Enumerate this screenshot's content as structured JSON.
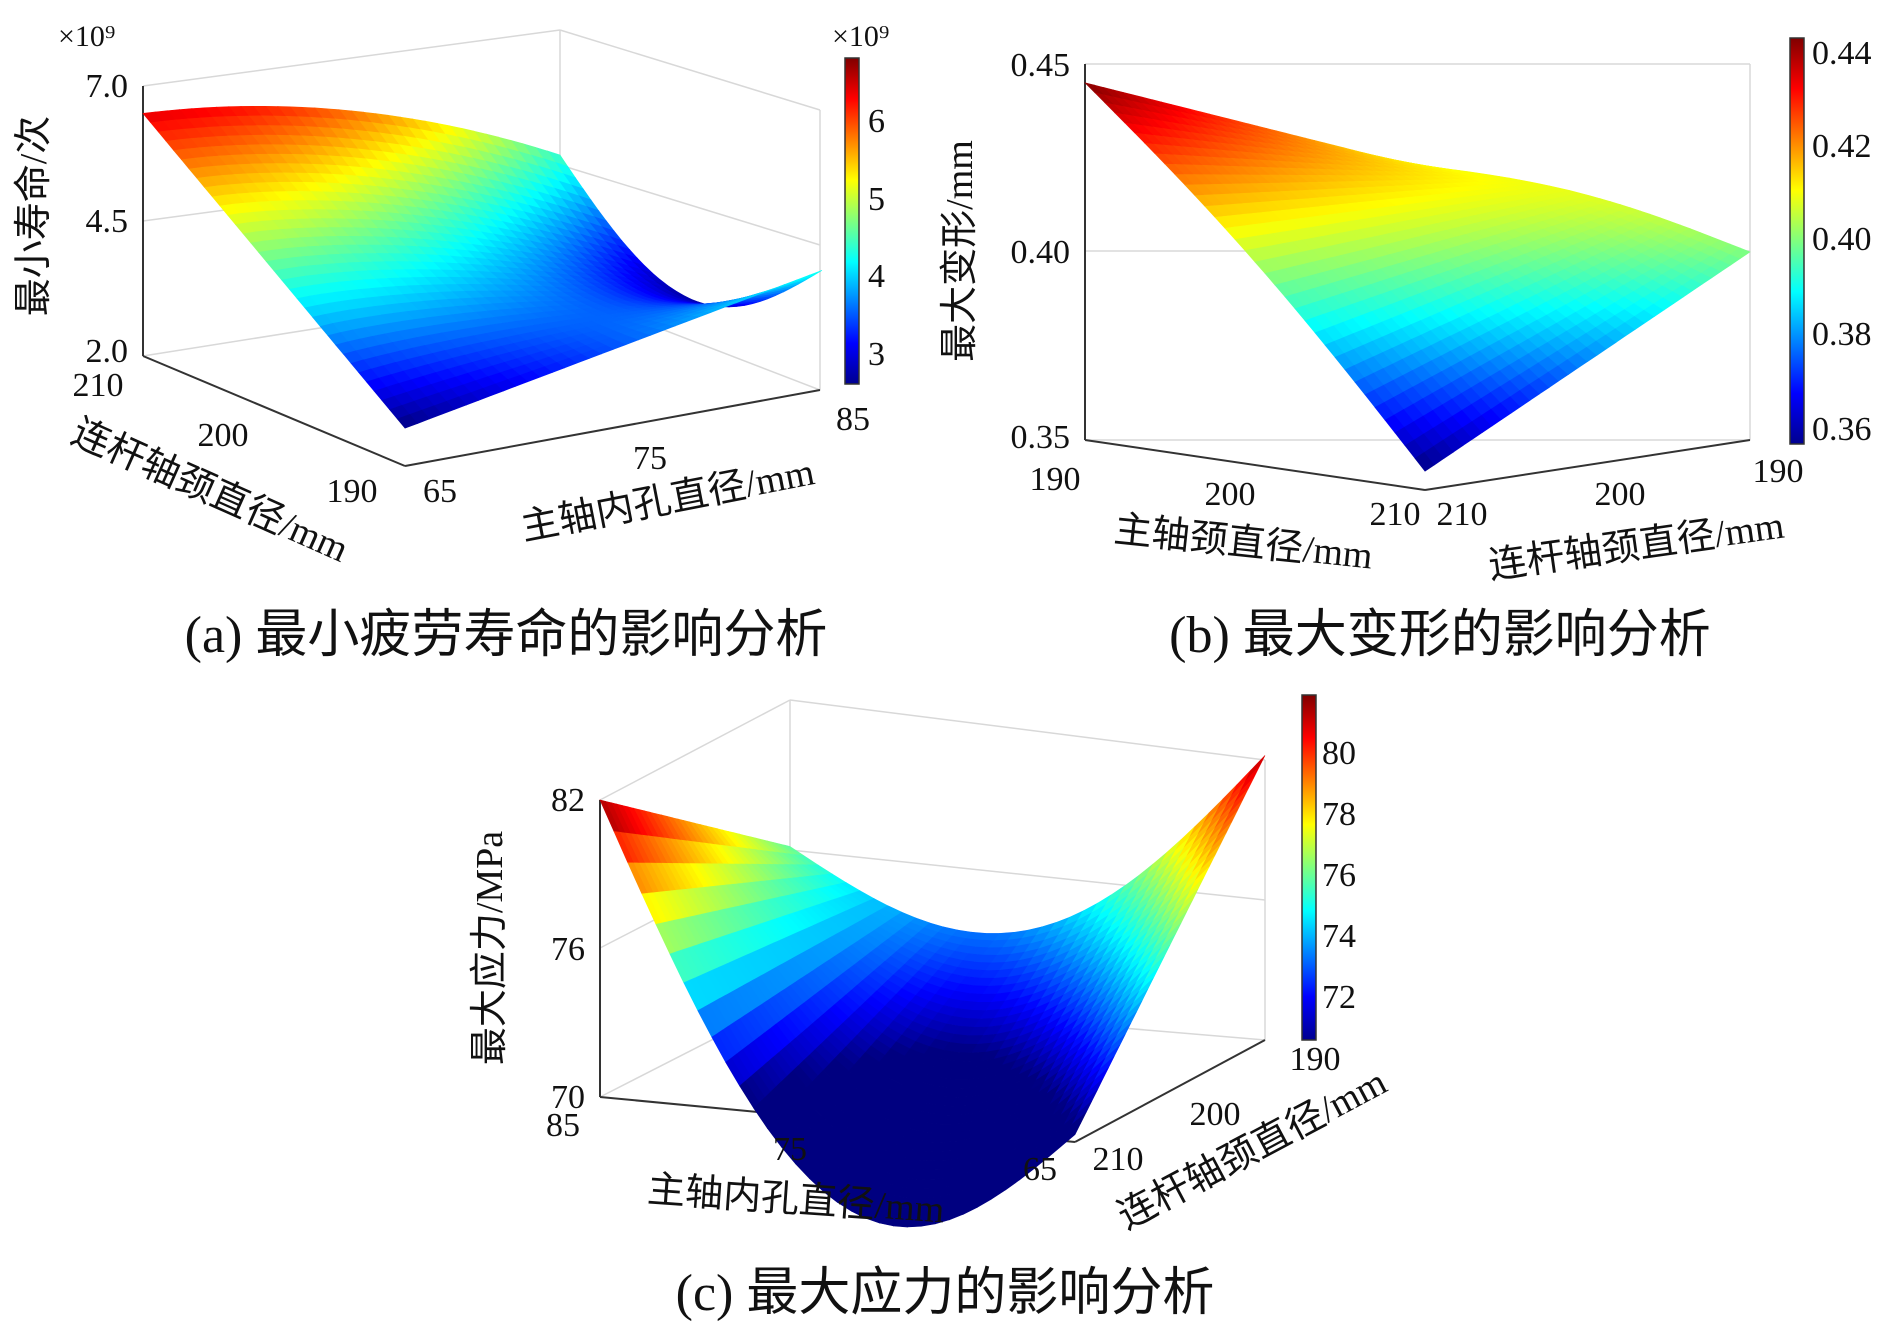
{
  "chart_data": [
    {
      "id": "a",
      "type": "surface",
      "caption": "(a) 最小疲劳寿命的影响分析",
      "zlabel": "最小寿命/次",
      "xlabel": "主轴内孔直径/mm",
      "ylabel": "连杆轴颈直径/mm",
      "z_multiplier": "×10⁹",
      "colorbar_multiplier": "×10⁹",
      "z_ticks": [
        "7.0",
        "4.5",
        "2.0"
      ],
      "z_range": [
        2.0,
        7.0
      ],
      "x_ticks": [
        "65",
        "75",
        "85"
      ],
      "x_range": [
        65,
        85
      ],
      "y_ticks": [
        "210",
        "200",
        "190"
      ],
      "y_range": [
        190,
        210
      ],
      "colorbar_ticks": [
        "6",
        "5",
        "4",
        "3"
      ],
      "colorbar_range": [
        2.7,
        6.9
      ],
      "corner_values": [
        {
          "x": 65,
          "y": 210,
          "z": 6.3
        },
        {
          "x": 65,
          "y": 190,
          "z": 2.7
        },
        {
          "x": 85,
          "y": 190,
          "z": 4.4
        },
        {
          "x": 85,
          "y": 210,
          "z": 4.5
        }
      ],
      "max_value": {
        "x": 68,
        "y": 205,
        "z": 6.9
      }
    },
    {
      "id": "b",
      "type": "surface",
      "caption": "(b) 最大变形的影响分析",
      "zlabel": "最大变形/mm",
      "xlabel": "主轴颈直径/mm",
      "ylabel": "连杆轴颈直径/mm",
      "z_ticks": [
        "0.45",
        "0.40",
        "0.35"
      ],
      "z_range": [
        0.35,
        0.45
      ],
      "x_ticks": [
        "190",
        "200",
        "210"
      ],
      "x_range": [
        190,
        210
      ],
      "y_ticks": [
        "210",
        "200",
        "190"
      ],
      "y_range": [
        190,
        210
      ],
      "colorbar_ticks": [
        "0.44",
        "0.42",
        "0.40",
        "0.38",
        "0.36"
      ],
      "colorbar_range": [
        0.355,
        0.445
      ],
      "corner_values": [
        {
          "x": 190,
          "y": 190,
          "z": 0.41
        },
        {
          "x": 190,
          "y": 210,
          "z": 0.445
        },
        {
          "x": 210,
          "y": 190,
          "z": 0.4
        },
        {
          "x": 210,
          "y": 210,
          "z": 0.355
        }
      ]
    },
    {
      "id": "c",
      "type": "surface",
      "caption": "(c) 最大应力的影响分析",
      "zlabel": "最大应力/MPa",
      "xlabel": "主轴内孔直径/mm",
      "ylabel": "连杆轴颈直径/mm",
      "z_ticks": [
        "82",
        "76",
        "70"
      ],
      "z_range": [
        70,
        82
      ],
      "x_ticks": [
        "85",
        "75",
        "65"
      ],
      "x_range": [
        65,
        85
      ],
      "y_ticks": [
        "190",
        "200",
        "210"
      ],
      "y_range": [
        190,
        210
      ],
      "colorbar_ticks": [
        "80",
        "78",
        "76",
        "74",
        "72"
      ],
      "colorbar_range": [
        70.5,
        82
      ],
      "corner_values": [
        {
          "x": 85,
          "y": 210,
          "z": 82
        },
        {
          "x": 65,
          "y": 210,
          "z": 70.3
        },
        {
          "x": 65,
          "y": 190,
          "z": 81.5
        },
        {
          "x": 85,
          "y": 190,
          "z": 76
        }
      ]
    }
  ]
}
